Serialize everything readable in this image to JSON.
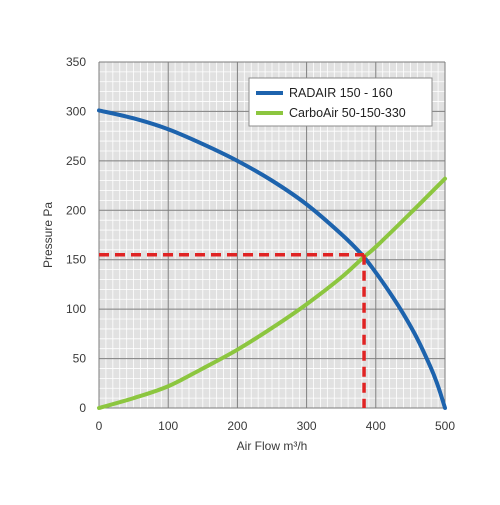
{
  "colors": {
    "plot_background": "#e1e1e1",
    "minor_grid": "#ffffff",
    "major_grid": "#7d7d7d",
    "operating_point": "#e02424"
  },
  "chart_data": {
    "type": "line",
    "xlabel": "Air Flow m³/h",
    "ylabel": "Pressure Pa",
    "xlim": [
      0,
      500
    ],
    "ylim": [
      0,
      350
    ],
    "x_ticks": [
      "0",
      "100",
      "200",
      "300",
      "400",
      "500"
    ],
    "y_ticks": [
      "0",
      "50",
      "100",
      "150",
      "200",
      "250",
      "300",
      "350"
    ],
    "grid": true,
    "legend_position": "top-right",
    "series": [
      {
        "name": "RADAIR 150 - 160",
        "color": "#1d63ad",
        "x": [
          0,
          50,
          100,
          150,
          200,
          250,
          300,
          350,
          380,
          400,
          420,
          440,
          460,
          480,
          490,
          500
        ],
        "y": [
          301,
          293,
          282,
          267,
          250,
          230,
          206,
          176,
          155,
          137,
          117,
          95,
          70,
          40,
          22,
          0
        ]
      },
      {
        "name": "CarboAir 50-150-330",
        "color": "#8cc63f",
        "x": [
          0,
          50,
          100,
          150,
          200,
          250,
          300,
          350,
          380,
          400,
          450,
          500
        ],
        "y": [
          0,
          10,
          22,
          40,
          59,
          81,
          105,
          132,
          151,
          163,
          197,
          232
        ]
      }
    ],
    "operating_point": {
      "x": 383,
      "y": 155
    }
  }
}
